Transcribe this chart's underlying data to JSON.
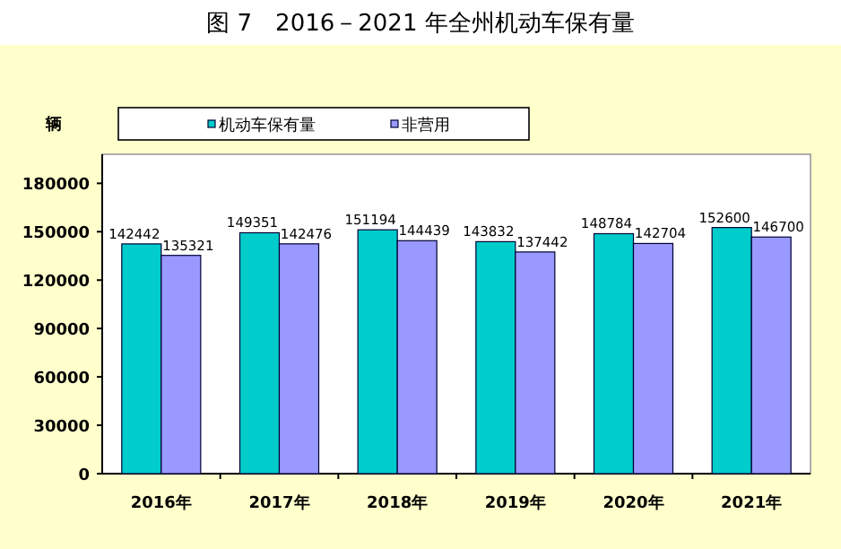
{
  "chart_data": {
    "type": "bar",
    "title": "图 7　2016－2021 年全州机动车保有量",
    "ylabel": "辆",
    "categories": [
      "2016年",
      "2017年",
      "2018年",
      "2019年",
      "2020年",
      "2021年"
    ],
    "series": [
      {
        "name": "机动车保有量",
        "color": "#00cccc",
        "values": [
          142442,
          149351,
          151194,
          143832,
          148784,
          152600
        ]
      },
      {
        "name": "非营用",
        "color": "#9999ff",
        "values": [
          135321,
          142476,
          144439,
          137442,
          142704,
          146700
        ]
      }
    ],
    "ylim": [
      0,
      198000
    ],
    "yticks": [
      0,
      30000,
      60000,
      90000,
      120000,
      150000,
      180000
    ],
    "data_labels": true,
    "legend": "top",
    "grid": false
  }
}
